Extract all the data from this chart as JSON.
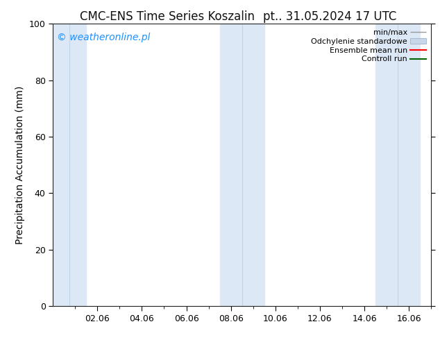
{
  "title_left": "CMC-ENS Time Series Koszalin",
  "title_right": "pt.. 31.05.2024 17 UTC",
  "ylabel": "Precipitation Accumulation (mm)",
  "ylim": [
    0,
    100
  ],
  "yticks": [
    0,
    20,
    40,
    60,
    80,
    100
  ],
  "background_color": "#ffffff",
  "plot_bg_color": "#ffffff",
  "watermark": "© weatheronline.pl",
  "watermark_color": "#1e90ff",
  "legend_labels": [
    "min/max",
    "Odchylenie standardowe",
    "Ensemble mean run",
    "Controll run"
  ],
  "shaded_color": "#dce8f5",
  "shaded_line_color": "#b8cfe8",
  "shaded_regions": [
    {
      "xstart": 0.0,
      "xend": 1.5,
      "mid": 0.75
    },
    {
      "xstart": 7.5,
      "xend": 9.5,
      "mid": 8.5
    },
    {
      "xstart": 14.5,
      "xend": 16.5,
      "mid": 15.5
    }
  ],
  "x_tick_labels": [
    "02.06",
    "04.06",
    "06.06",
    "08.06",
    "10.06",
    "12.06",
    "14.06",
    "16.06"
  ],
  "x_tick_positions": [
    2,
    4,
    6,
    8,
    10,
    12,
    14,
    16
  ],
  "xlim": [
    0,
    17
  ],
  "minor_xtick_positions": [
    1,
    3,
    5,
    7,
    9,
    11,
    13,
    15,
    17
  ],
  "title_fontsize": 12,
  "label_fontsize": 10,
  "tick_fontsize": 9,
  "watermark_fontsize": 10,
  "legend_fontsize": 8
}
